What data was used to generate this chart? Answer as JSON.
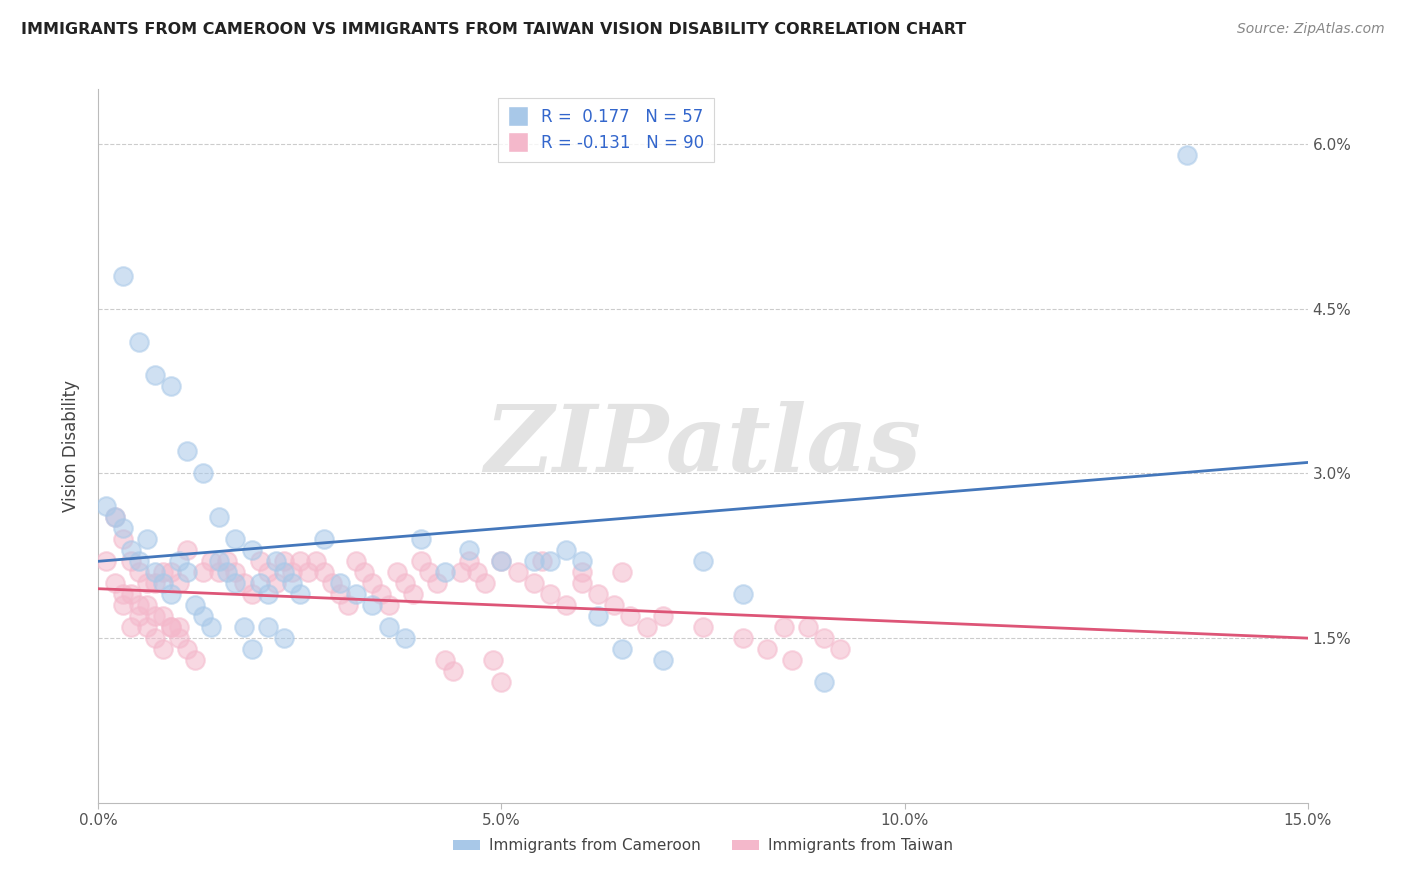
{
  "title": "IMMIGRANTS FROM CAMEROON VS IMMIGRANTS FROM TAIWAN VISION DISABILITY CORRELATION CHART",
  "source": "Source: ZipAtlas.com",
  "ylabel": "Vision Disability",
  "xlim": [
    0.0,
    0.15
  ],
  "ylim": [
    0.0,
    0.065
  ],
  "color_cameroon": "#a8c8e8",
  "color_taiwan": "#f4b8cb",
  "line_color_cameroon": "#4477bb",
  "line_color_taiwan": "#dd5577",
  "watermark_text": "ZIPatlas",
  "grid_color": "#cccccc",
  "background_color": "#ffffff",
  "cam_line_x": [
    0.0,
    0.15
  ],
  "cam_line_y": [
    0.022,
    0.031
  ],
  "tw_line_x": [
    0.0,
    0.15
  ],
  "tw_line_y": [
    0.0195,
    0.015
  ],
  "cameroon_x": [
    0.001,
    0.002,
    0.003,
    0.004,
    0.005,
    0.006,
    0.007,
    0.008,
    0.009,
    0.01,
    0.011,
    0.012,
    0.013,
    0.014,
    0.015,
    0.016,
    0.017,
    0.018,
    0.019,
    0.02,
    0.021,
    0.022,
    0.023,
    0.024,
    0.025,
    0.003,
    0.005,
    0.007,
    0.009,
    0.011,
    0.013,
    0.015,
    0.017,
    0.019,
    0.021,
    0.023,
    0.028,
    0.03,
    0.032,
    0.034,
    0.036,
    0.038,
    0.04,
    0.043,
    0.046,
    0.05,
    0.054,
    0.056,
    0.058,
    0.06,
    0.062,
    0.065,
    0.07,
    0.075,
    0.08,
    0.09,
    0.135
  ],
  "cameroon_y": [
    0.027,
    0.026,
    0.025,
    0.023,
    0.022,
    0.024,
    0.021,
    0.02,
    0.019,
    0.022,
    0.021,
    0.018,
    0.017,
    0.016,
    0.022,
    0.021,
    0.02,
    0.016,
    0.014,
    0.02,
    0.019,
    0.022,
    0.021,
    0.02,
    0.019,
    0.048,
    0.042,
    0.039,
    0.038,
    0.032,
    0.03,
    0.026,
    0.024,
    0.023,
    0.016,
    0.015,
    0.024,
    0.02,
    0.019,
    0.018,
    0.016,
    0.015,
    0.024,
    0.021,
    0.023,
    0.022,
    0.022,
    0.022,
    0.023,
    0.022,
    0.017,
    0.014,
    0.013,
    0.022,
    0.019,
    0.011,
    0.059
  ],
  "taiwan_x": [
    0.001,
    0.002,
    0.003,
    0.004,
    0.005,
    0.006,
    0.007,
    0.008,
    0.009,
    0.01,
    0.002,
    0.003,
    0.004,
    0.005,
    0.006,
    0.007,
    0.008,
    0.009,
    0.01,
    0.011,
    0.003,
    0.004,
    0.005,
    0.006,
    0.007,
    0.008,
    0.009,
    0.01,
    0.011,
    0.012,
    0.013,
    0.014,
    0.015,
    0.016,
    0.017,
    0.018,
    0.019,
    0.02,
    0.021,
    0.022,
    0.023,
    0.024,
    0.025,
    0.026,
    0.027,
    0.028,
    0.029,
    0.03,
    0.031,
    0.032,
    0.033,
    0.034,
    0.035,
    0.036,
    0.037,
    0.038,
    0.039,
    0.04,
    0.041,
    0.042,
    0.043,
    0.044,
    0.045,
    0.046,
    0.047,
    0.048,
    0.049,
    0.05,
    0.055,
    0.06,
    0.065,
    0.07,
    0.075,
    0.08,
    0.085,
    0.083,
    0.086,
    0.088,
    0.09,
    0.092,
    0.05,
    0.052,
    0.054,
    0.056,
    0.058,
    0.06,
    0.062,
    0.064,
    0.066,
    0.068
  ],
  "taiwan_y": [
    0.022,
    0.02,
    0.019,
    0.019,
    0.018,
    0.018,
    0.017,
    0.017,
    0.016,
    0.016,
    0.026,
    0.024,
    0.022,
    0.021,
    0.02,
    0.02,
    0.021,
    0.021,
    0.02,
    0.023,
    0.018,
    0.016,
    0.017,
    0.016,
    0.015,
    0.014,
    0.016,
    0.015,
    0.014,
    0.013,
    0.021,
    0.022,
    0.021,
    0.022,
    0.021,
    0.02,
    0.019,
    0.022,
    0.021,
    0.02,
    0.022,
    0.021,
    0.022,
    0.021,
    0.022,
    0.021,
    0.02,
    0.019,
    0.018,
    0.022,
    0.021,
    0.02,
    0.019,
    0.018,
    0.021,
    0.02,
    0.019,
    0.022,
    0.021,
    0.02,
    0.013,
    0.012,
    0.021,
    0.022,
    0.021,
    0.02,
    0.013,
    0.011,
    0.022,
    0.021,
    0.021,
    0.017,
    0.016,
    0.015,
    0.016,
    0.014,
    0.013,
    0.016,
    0.015,
    0.014,
    0.022,
    0.021,
    0.02,
    0.019,
    0.018,
    0.02,
    0.019,
    0.018,
    0.017,
    0.016
  ]
}
